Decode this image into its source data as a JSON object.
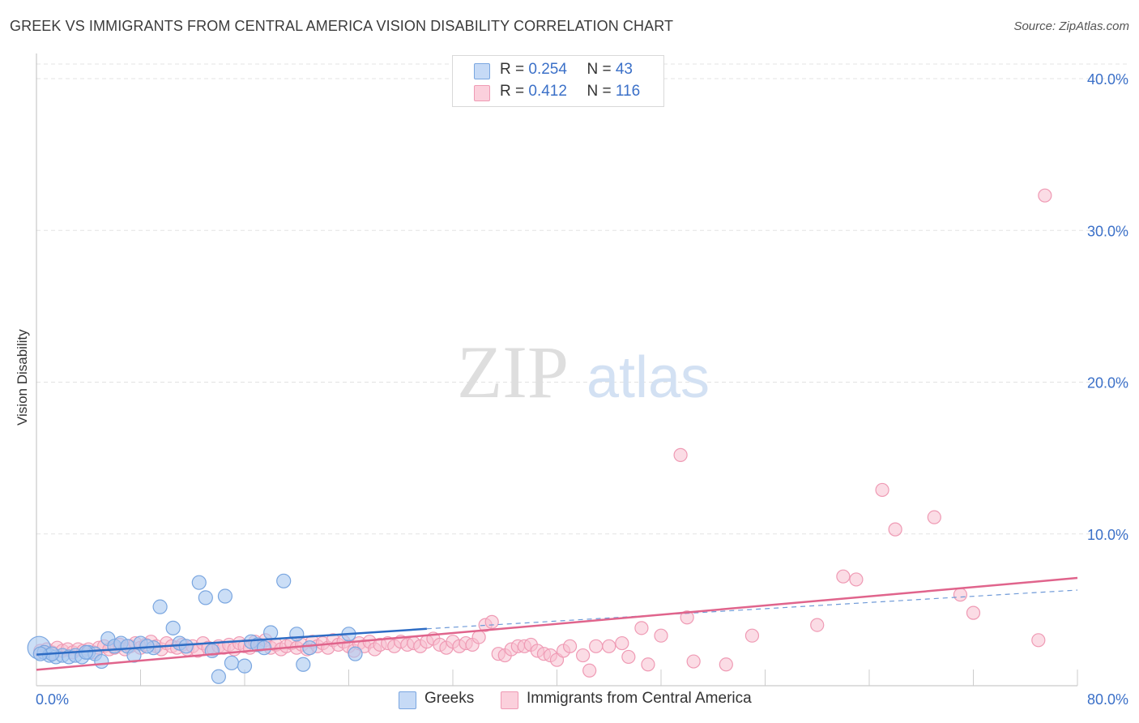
{
  "header": {
    "title": "GREEK VS IMMIGRANTS FROM CENTRAL AMERICA VISION DISABILITY CORRELATION CHART",
    "source": "Source: ZipAtlas.com"
  },
  "watermark": {
    "zip": "ZIP",
    "atlas": "atlas"
  },
  "legend_top": {
    "rows": [
      {
        "r_label": "R = ",
        "r_value": "0.254",
        "n_label": "N = ",
        "n_value": "43",
        "color": "#a9c8f0"
      },
      {
        "r_label": "R = ",
        "r_value": "0.412",
        "n_label": "N = ",
        "n_value": "116",
        "color": "#f7b6c8"
      }
    ]
  },
  "bottom_legend": [
    {
      "label": "Greeks",
      "color": "#a9c8f0"
    },
    {
      "label": "Immigrants from Central America",
      "color": "#f7b6c8"
    }
  ],
  "colors": {
    "greeks_fill": "#a9c8f0",
    "greeks_stroke": "#7aa6e0",
    "greeks_line": "#2d6cc4",
    "imm_fill": "#f7c0d0",
    "imm_stroke": "#ef9ab4",
    "imm_line": "#e0648c",
    "axis_text": "#3b70c8",
    "grid": "#e3e3e3"
  },
  "chart_data": {
    "type": "scatter",
    "title": "GREEK VS IMMIGRANTS FROM CENTRAL AMERICA VISION DISABILITY CORRELATION CHART",
    "xlabel": "",
    "ylabel": "Vision Disability",
    "xlim": [
      0,
      80
    ],
    "ylim": [
      0,
      42
    ],
    "x_tick_labels": [
      "0.0%",
      "80.0%"
    ],
    "y_ticks": [
      10,
      20,
      30,
      40
    ],
    "y_tick_labels": [
      "10.0%",
      "20.0%",
      "30.0%",
      "40.0%"
    ],
    "grid": true,
    "legend_position": "top-center",
    "series": [
      {
        "name": "Greeks",
        "r": 0.254,
        "n": 43,
        "trend": {
          "x": [
            0,
            30
          ],
          "y": [
            2.05,
            3.75
          ]
        },
        "trend_dashed": {
          "x": [
            30,
            80
          ],
          "y": [
            3.75,
            6.3
          ]
        },
        "points": [
          [
            0.2,
            2.5
          ],
          [
            0.6,
            2.2
          ],
          [
            1.0,
            2.0
          ],
          [
            1.5,
            1.9
          ],
          [
            2.0,
            2.0
          ],
          [
            2.5,
            1.9
          ],
          [
            3.0,
            2.0
          ],
          [
            3.5,
            1.9
          ],
          [
            4.0,
            2.2
          ],
          [
            4.5,
            2.1
          ],
          [
            5.0,
            1.6
          ],
          [
            5.5,
            3.1
          ],
          [
            6.0,
            2.6
          ],
          [
            6.5,
            2.8
          ],
          [
            7.0,
            2.6
          ],
          [
            7.5,
            2.0
          ],
          [
            8.0,
            2.8
          ],
          [
            9.0,
            2.5
          ],
          [
            9.5,
            5.2
          ],
          [
            10.5,
            3.8
          ],
          [
            11.0,
            2.8
          ],
          [
            11.5,
            2.6
          ],
          [
            12.5,
            6.8
          ],
          [
            13.0,
            5.8
          ],
          [
            13.5,
            2.3
          ],
          [
            14.0,
            0.6
          ],
          [
            14.5,
            5.9
          ],
          [
            15.0,
            1.5
          ],
          [
            16.0,
            1.3
          ],
          [
            16.5,
            2.9
          ],
          [
            17.0,
            2.7
          ],
          [
            17.5,
            2.5
          ],
          [
            18.0,
            3.5
          ],
          [
            19.0,
            6.9
          ],
          [
            20.0,
            3.4
          ],
          [
            20.5,
            1.4
          ],
          [
            21.0,
            2.5
          ],
          [
            24.0,
            3.4
          ],
          [
            24.5,
            2.1
          ],
          [
            3.8,
            2.2
          ],
          [
            1.2,
            2.1
          ],
          [
            8.5,
            2.6
          ],
          [
            0.3,
            2.1
          ]
        ]
      },
      {
        "name": "Immigrants from Central America",
        "r": 0.412,
        "n": 116,
        "trend": {
          "x": [
            0,
            80
          ],
          "y": [
            1.05,
            7.1
          ]
        },
        "points": [
          [
            0.3,
            2.3
          ],
          [
            0.8,
            2.4
          ],
          [
            1.2,
            2.2
          ],
          [
            1.6,
            2.5
          ],
          [
            2.0,
            2.3
          ],
          [
            2.4,
            2.4
          ],
          [
            2.8,
            2.2
          ],
          [
            3.2,
            2.4
          ],
          [
            3.6,
            2.3
          ],
          [
            4.0,
            2.4
          ],
          [
            4.4,
            2.2
          ],
          [
            4.8,
            2.5
          ],
          [
            5.2,
            2.6
          ],
          [
            5.6,
            2.4
          ],
          [
            6.0,
            2.5
          ],
          [
            6.4,
            2.7
          ],
          [
            6.8,
            2.4
          ],
          [
            7.2,
            2.6
          ],
          [
            7.6,
            2.8
          ],
          [
            8.0,
            2.5
          ],
          [
            8.4,
            2.7
          ],
          [
            8.8,
            2.9
          ],
          [
            9.2,
            2.6
          ],
          [
            9.6,
            2.4
          ],
          [
            10.0,
            2.8
          ],
          [
            10.4,
            2.6
          ],
          [
            10.8,
            2.5
          ],
          [
            11.2,
            2.7
          ],
          [
            11.6,
            2.4
          ],
          [
            12.0,
            2.6
          ],
          [
            12.4,
            2.3
          ],
          [
            12.8,
            2.8
          ],
          [
            13.2,
            2.5
          ],
          [
            13.6,
            2.4
          ],
          [
            14.0,
            2.6
          ],
          [
            14.4,
            2.5
          ],
          [
            14.8,
            2.7
          ],
          [
            15.2,
            2.4
          ],
          [
            15.6,
            2.8
          ],
          [
            16.0,
            2.6
          ],
          [
            16.4,
            2.5
          ],
          [
            16.8,
            2.9
          ],
          [
            17.2,
            2.7
          ],
          [
            17.6,
            3.0
          ],
          [
            18.0,
            2.5
          ],
          [
            18.4,
            2.7
          ],
          [
            18.8,
            2.4
          ],
          [
            19.2,
            2.6
          ],
          [
            19.6,
            2.8
          ],
          [
            20.0,
            2.5
          ],
          [
            20.4,
            2.7
          ],
          [
            20.8,
            2.4
          ],
          [
            21.2,
            2.9
          ],
          [
            21.6,
            2.6
          ],
          [
            22.0,
            2.8
          ],
          [
            22.4,
            2.5
          ],
          [
            22.8,
            3.0
          ],
          [
            23.2,
            2.7
          ],
          [
            23.6,
            2.9
          ],
          [
            24.0,
            2.6
          ],
          [
            24.4,
            2.3
          ],
          [
            24.8,
            2.8
          ],
          [
            25.2,
            2.6
          ],
          [
            25.6,
            2.9
          ],
          [
            26.0,
            2.4
          ],
          [
            26.4,
            2.7
          ],
          [
            27.0,
            2.8
          ],
          [
            27.5,
            2.6
          ],
          [
            28.0,
            2.9
          ],
          [
            28.5,
            2.7
          ],
          [
            29.0,
            2.8
          ],
          [
            29.5,
            2.6
          ],
          [
            30.0,
            2.9
          ],
          [
            30.5,
            3.1
          ],
          [
            31.0,
            2.7
          ],
          [
            31.5,
            2.5
          ],
          [
            32.0,
            2.9
          ],
          [
            32.5,
            2.6
          ],
          [
            33.0,
            2.8
          ],
          [
            33.5,
            2.7
          ],
          [
            34.0,
            3.2
          ],
          [
            34.5,
            4.0
          ],
          [
            35.0,
            4.2
          ],
          [
            35.5,
            2.1
          ],
          [
            36.0,
            2.0
          ],
          [
            36.5,
            2.4
          ],
          [
            37.0,
            2.6
          ],
          [
            37.5,
            2.6
          ],
          [
            38.0,
            2.7
          ],
          [
            38.5,
            2.3
          ],
          [
            39.0,
            2.1
          ],
          [
            39.5,
            2.0
          ],
          [
            40.0,
            1.7
          ],
          [
            40.5,
            2.3
          ],
          [
            41.0,
            2.6
          ],
          [
            42.0,
            2.0
          ],
          [
            43.0,
            2.6
          ],
          [
            44.0,
            2.6
          ],
          [
            45.0,
            2.8
          ],
          [
            45.5,
            1.9
          ],
          [
            47.0,
            1.4
          ],
          [
            48.0,
            3.3
          ],
          [
            50.0,
            4.5
          ],
          [
            50.5,
            1.6
          ],
          [
            53.0,
            1.4
          ],
          [
            55.0,
            3.3
          ],
          [
            60.0,
            4.0
          ],
          [
            62.0,
            7.2
          ],
          [
            63.0,
            7.0
          ],
          [
            65.0,
            12.9
          ],
          [
            66.0,
            10.3
          ],
          [
            69.0,
            11.1
          ],
          [
            71.0,
            6.0
          ],
          [
            72.0,
            4.8
          ],
          [
            77.0,
            3.0
          ],
          [
            77.5,
            32.3
          ],
          [
            49.5,
            15.2
          ],
          [
            46.5,
            3.8
          ],
          [
            42.5,
            1.0
          ]
        ]
      }
    ]
  }
}
